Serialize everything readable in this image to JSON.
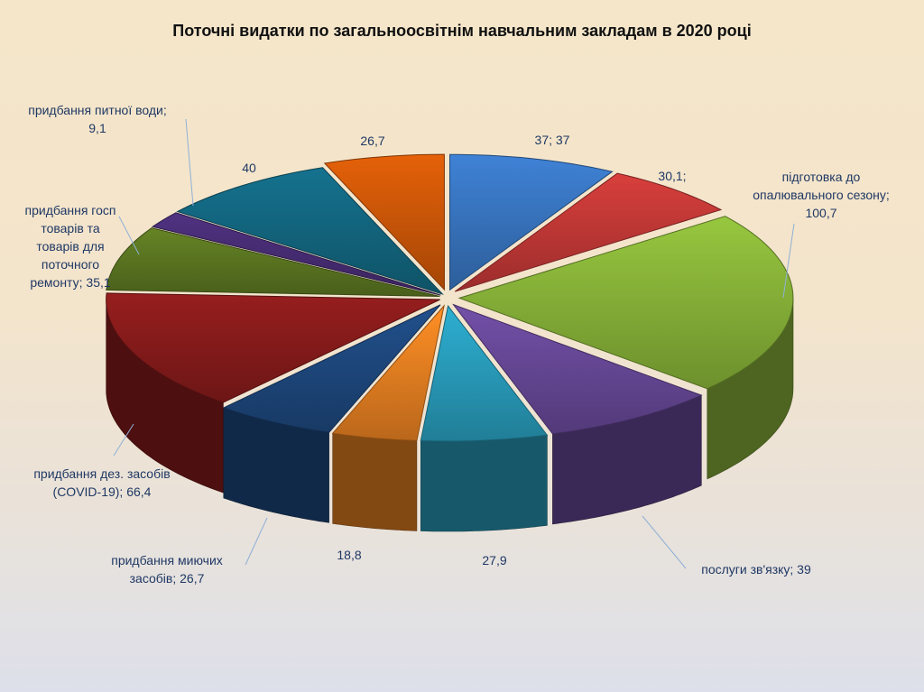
{
  "chart_data": {
    "type": "pie",
    "title": "Поточні видатки по загальноосвітнім навчальним закладам в 2020 році",
    "slices": [
      {
        "label_lines": [
          "37; 37"
        ],
        "value": 37,
        "color": "#3a78c6"
      },
      {
        "label_lines": [
          "30,1;"
        ],
        "value": 30.1,
        "color": "#c83a38"
      },
      {
        "label_lines": [
          "підготовка до",
          "опалювального сезону;",
          "100,7"
        ],
        "value": 100.7,
        "color": "#8cb83a"
      },
      {
        "label_lines": [
          "послуги зв'язку; 39"
        ],
        "value": 39,
        "color": "#6a4a9c"
      },
      {
        "label_lines": [
          "27,9"
        ],
        "value": 27.9,
        "color": "#2aa2c2"
      },
      {
        "label_lines": [
          "18,8"
        ],
        "value": 18.8,
        "color": "#ee8422"
      },
      {
        "label_lines": [
          "придбання  миючих",
          "засобів; 26,7"
        ],
        "value": 26.7,
        "color": "#1f4a82"
      },
      {
        "label_lines": [
          "придбання  дез. засобів",
          "(COVID-19); 66,4"
        ],
        "value": 66.4,
        "color": "#8c1c1c"
      },
      {
        "label_lines": [
          "придбання госп",
          "товарів та",
          "товарів для",
          "поточного",
          "ремонту; 35,1"
        ],
        "value": 35.1,
        "color": "#5e7a22"
      },
      {
        "label_lines": [
          "придбання питної води;",
          "9,1"
        ],
        "value": 9.1,
        "color": "#4a2e78"
      },
      {
        "label_lines": [
          "40"
        ],
        "value": 40,
        "color": "#136a84"
      },
      {
        "label_lines": [
          "26,7"
        ],
        "value": 26.7,
        "color": "#d45a08"
      }
    ]
  }
}
